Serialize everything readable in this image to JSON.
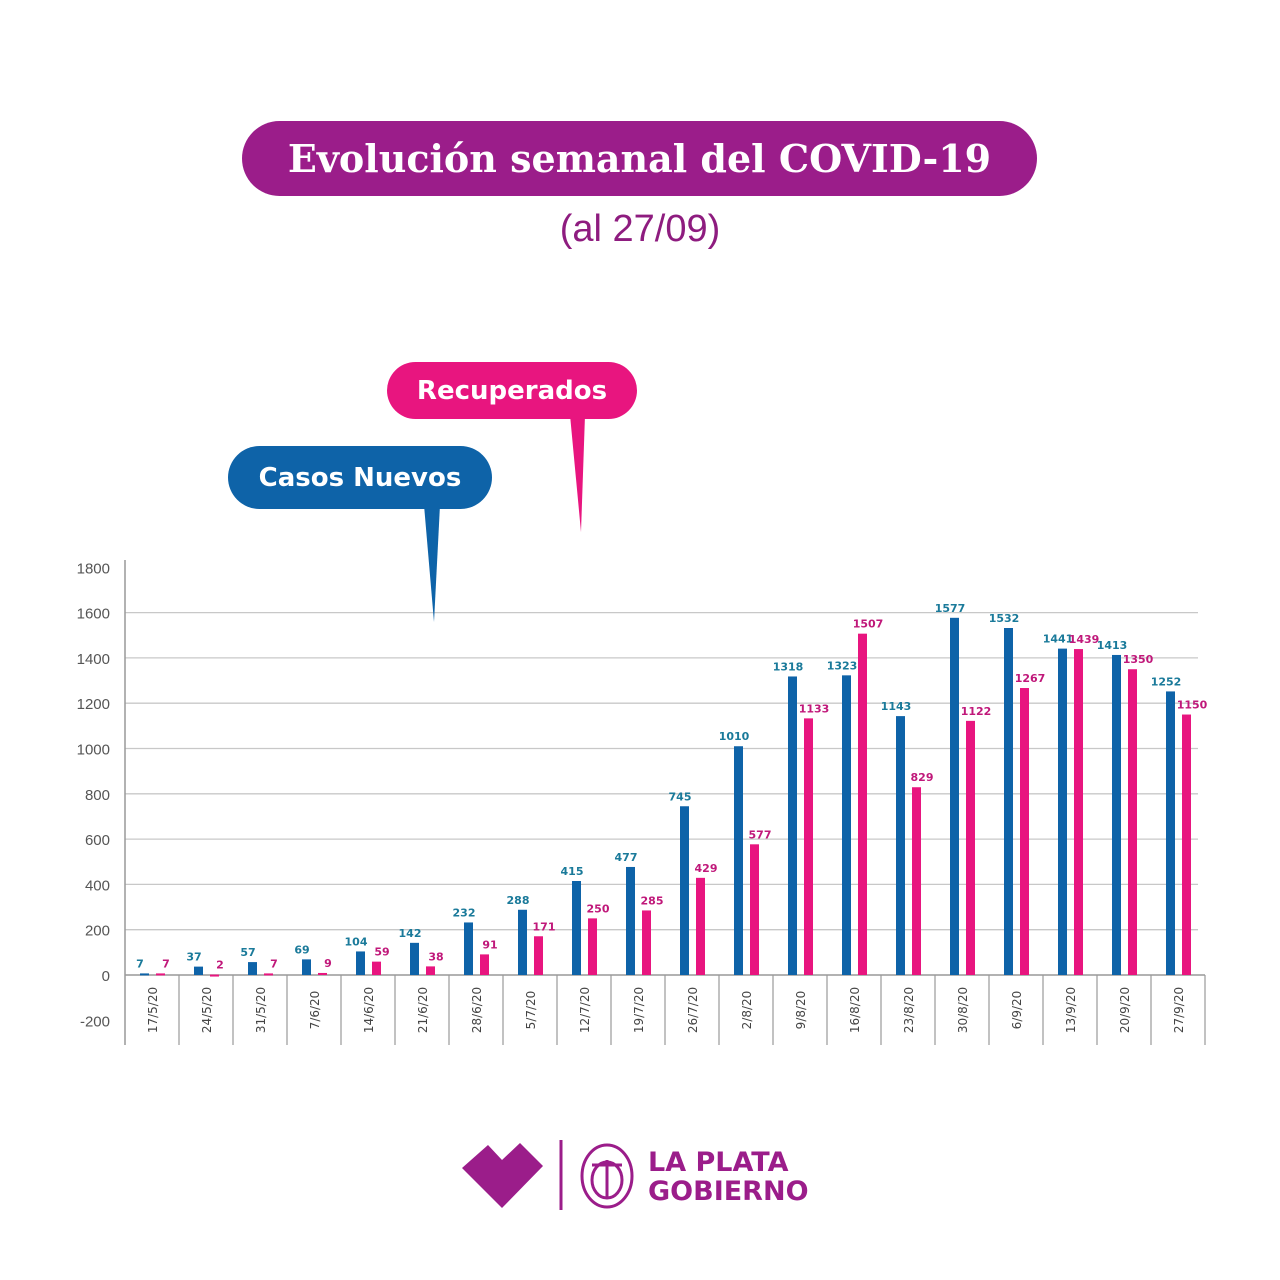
{
  "header": {
    "title": "Evolución semanal del COVID-19",
    "subtitle": "(al 27/09)"
  },
  "legend": {
    "casos": "Casos Nuevos",
    "recuperados": "Recuperados"
  },
  "colors": {
    "casos": "#0e63a8",
    "recuperados": "#e8157f",
    "casos_label": "#1a7a9a",
    "recuperados_label": "#c0187a",
    "brand": "#9b1d8a"
  },
  "footer": {
    "logo_line1": "LA PLATA",
    "logo_line2": "GOBIERNO"
  },
  "chart_data": {
    "type": "bar",
    "title": "Evolución semanal del COVID-19",
    "categories": [
      "17/5/20",
      "24/5/20",
      "31/5/20",
      "7/6/20",
      "14/6/20",
      "21/6/20",
      "28/6/20",
      "5/7/20",
      "12/7/20",
      "19/7/20",
      "26/7/20",
      "2/8/20",
      "9/8/20",
      "16/8/20",
      "23/8/20",
      "30/8/20",
      "6/9/20",
      "13/9/20",
      "20/9/20",
      "27/9/20"
    ],
    "series": [
      {
        "name": "Casos Nuevos",
        "values": [
          7,
          37,
          57,
          69,
          104,
          142,
          232,
          288,
          415,
          477,
          745,
          1010,
          1318,
          1323,
          1143,
          1577,
          1532,
          1441,
          1413,
          1252
        ]
      },
      {
        "name": "Recuperados",
        "values": [
          7,
          2,
          7,
          9,
          59,
          38,
          91,
          171,
          250,
          285,
          429,
          577,
          1133,
          1507,
          829,
          1122,
          1267,
          1439,
          1350,
          1150
        ]
      }
    ],
    "yticks": [
      -200,
      0,
      200,
      400,
      600,
      800,
      1000,
      1200,
      1400,
      1600,
      1800
    ],
    "ylim": [
      -200,
      1800
    ],
    "grid": true,
    "xlabel": "",
    "ylabel": ""
  }
}
